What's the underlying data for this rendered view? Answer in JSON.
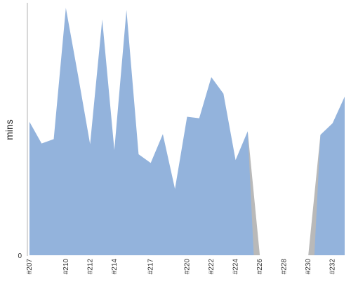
{
  "chart_data": {
    "type": "area",
    "ylabel": "mins",
    "yticks": [
      "0"
    ],
    "y_min": 0,
    "x": [
      "#207",
      "#208",
      "#209",
      "#210",
      "#211",
      "#212",
      "#213",
      "#214",
      "#215",
      "#216",
      "#217",
      "#218",
      "#219",
      "#220",
      "#221",
      "#222",
      "#223",
      "#224",
      "#225",
      "#226",
      "#227",
      "#228",
      "#229",
      "#230",
      "#231",
      "#232",
      "#233"
    ],
    "xtick_labels": [
      "#207",
      "#210",
      "#212",
      "#214",
      "#217",
      "#220",
      "#222",
      "#224",
      "#226",
      "#228",
      "#230",
      "#232"
    ],
    "y": [
      185,
      155,
      161,
      343,
      250,
      154,
      327,
      146,
      340,
      140,
      128,
      168,
      92,
      192,
      190,
      247,
      224,
      132,
      172,
      0,
      0,
      0,
      0,
      0,
      167,
      183,
      220
    ],
    "colors": {
      "fill": "#93b3dc",
      "failed_fill": "#b9b9b9",
      "axis": "#b0b0b0"
    }
  }
}
